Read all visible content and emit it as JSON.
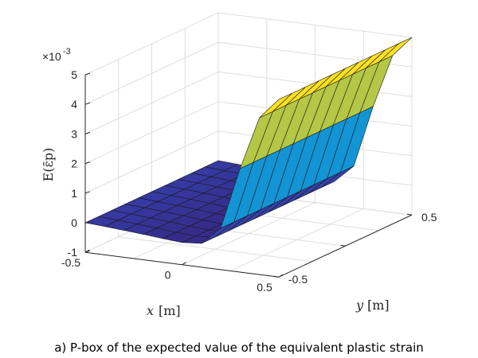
{
  "caption": "a) P-box of the expected value of the equivalent plastic strain",
  "chart_data": {
    "type": "surface3d",
    "title": "",
    "xlabel_var": "x",
    "xlabel_unit": "[m]",
    "ylabel_var": "y",
    "ylabel_unit": "[m]",
    "zlabel": "E(ε̄p)",
    "z_exponent_label": "×10",
    "z_exponent_power": "-3",
    "xlim": [
      -0.5,
      0.5
    ],
    "ylim": [
      -0.5,
      0.5
    ],
    "zlim": [
      -0.001,
      0.005
    ],
    "xticks": [
      -0.5,
      0,
      0.5
    ],
    "xtick_labels": [
      "-0.5",
      "0",
      "0.5"
    ],
    "yticks": [
      -0.5,
      0.5
    ],
    "ytick_labels": [
      "-0.5",
      "0.5"
    ],
    "zticks": [
      -0.001,
      0,
      0.001,
      0.002,
      0.003,
      0.004,
      0.005
    ],
    "ztick_labels": [
      "-1",
      "0",
      "1",
      "2",
      "3",
      "4",
      "5"
    ],
    "grid": true,
    "colormap": "parula",
    "x": [
      -0.5,
      -0.4,
      -0.3,
      -0.2,
      -0.1,
      0,
      0.1,
      0.2,
      0.3,
      0.4,
      0.5
    ],
    "y": [
      -0.5,
      -0.4,
      -0.3,
      -0.2,
      -0.1,
      0,
      0.1,
      0.2,
      0.3,
      0.4,
      0.5
    ],
    "z_profile_along_y": [
      0,
      0,
      0,
      0,
      0,
      0,
      0,
      0,
      0,
      0,
      0
    ],
    "z_profile_along_x": [
      0,
      -4e-05,
      -9e-05,
      -0.00014,
      -0.0002,
      -0.00025,
      -0.0002,
      0.0004,
      0.0025,
      0.0043,
      0.005
    ]
  }
}
